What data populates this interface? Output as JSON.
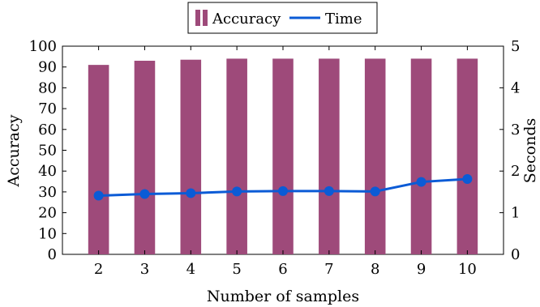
{
  "chart_data": {
    "type": "bar",
    "xlabel": "Number of samples",
    "ylabel_left": "Accuracy",
    "ylabel_right": "Seconds",
    "categories": [
      "2",
      "3",
      "4",
      "5",
      "6",
      "7",
      "8",
      "9",
      "10"
    ],
    "ylim_left": [
      0,
      100
    ],
    "ylim_right": [
      0,
      5
    ],
    "yticks_left": [
      "0",
      "10",
      "20",
      "30",
      "40",
      "50",
      "60",
      "70",
      "80",
      "90",
      "100"
    ],
    "yticks_right": [
      "0",
      "1",
      "2",
      "3",
      "4",
      "5"
    ],
    "grid": false,
    "legend_position": "top-center",
    "series": [
      {
        "name": "Accuracy",
        "type": "bar",
        "axis": "left",
        "color": "#9e4a7a",
        "values": [
          91,
          93,
          93.5,
          94,
          94,
          94,
          94,
          94,
          94
        ]
      },
      {
        "name": "Time",
        "type": "line",
        "axis": "right",
        "color": "#0b5bd6",
        "values": [
          1.41,
          1.45,
          1.47,
          1.51,
          1.52,
          1.52,
          1.51,
          1.74,
          1.81
        ]
      }
    ]
  }
}
